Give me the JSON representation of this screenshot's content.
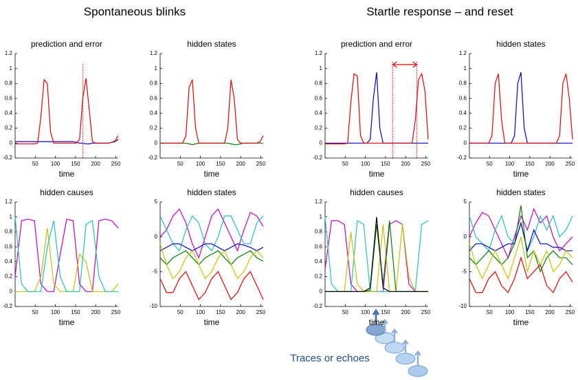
{
  "headings": [
    "Spontaneous blinks",
    "Startle response – and reset"
  ],
  "annotation": "Traces or echoes",
  "chart_data": [
    {
      "type": "line",
      "title": "prediction and error",
      "xlabel": "time",
      "xlim": [
        0,
        256
      ],
      "xticks": [
        50,
        100,
        150,
        200,
        250
      ],
      "ylim": [
        -0.2,
        1.2
      ],
      "yticks": [
        -0.2,
        0,
        0.2,
        0.4,
        0.6,
        0.8,
        1,
        1.2
      ],
      "vlines": [
        168
      ],
      "x": [
        0,
        8,
        16,
        24,
        32,
        40,
        48,
        56,
        64,
        72,
        80,
        88,
        96,
        104,
        112,
        120,
        128,
        136,
        144,
        152,
        160,
        168,
        176,
        184,
        192,
        200,
        208,
        216,
        224,
        232,
        240,
        248,
        256
      ],
      "series": [
        {
          "color": "#0000cc",
          "values": [
            0.02,
            0.02,
            0.02,
            0.02,
            0.02,
            0.02,
            0.02,
            0.02,
            0.02,
            0.02,
            0.02,
            0.02,
            0.02,
            0.02,
            0.02,
            0.02,
            0.02,
            0.02,
            0.02,
            0.01,
            0,
            0,
            -0.01,
            -0.01,
            0,
            0,
            0,
            0,
            0,
            0,
            0.01,
            0.02,
            0.05
          ]
        },
        {
          "color": "#e60000",
          "values": [
            -0.01,
            -0.01,
            -0.01,
            -0.01,
            -0.01,
            -0.01,
            -0.01,
            0,
            0.35,
            0.85,
            0.8,
            0.15,
            0,
            0,
            0,
            0,
            0,
            0,
            0,
            0,
            0.05,
            0.6,
            0.87,
            0.45,
            0.02,
            0,
            0,
            0,
            0,
            0,
            0.01,
            0.03,
            0.1
          ]
        }
      ]
    },
    {
      "type": "line",
      "title": "hidden states",
      "xlabel": "time",
      "xlim": [
        0,
        256
      ],
      "xticks": [
        50,
        100,
        150,
        200,
        250
      ],
      "ylim": [
        -0.2,
        1.2
      ],
      "yticks": [
        -0.2,
        0,
        0.2,
        0.4,
        0.6,
        0.8,
        1,
        1.2
      ],
      "x": [
        0,
        8,
        16,
        24,
        32,
        40,
        48,
        56,
        64,
        72,
        80,
        88,
        96,
        104,
        112,
        120,
        128,
        136,
        144,
        152,
        160,
        168,
        176,
        184,
        192,
        200,
        208,
        216,
        224,
        232,
        240,
        248,
        256
      ],
      "series": [
        {
          "color": "#008000",
          "values": [
            0,
            0,
            0,
            0,
            0,
            0,
            0,
            0,
            0,
            -0.01,
            -0.02,
            -0.01,
            0,
            0,
            0,
            0,
            0,
            0,
            0,
            0,
            0,
            0,
            -0.01,
            -0.02,
            -0.02,
            -0.01,
            0,
            0,
            0,
            0,
            0,
            0,
            0
          ]
        },
        {
          "color": "#e60000",
          "values": [
            0,
            0,
            0,
            0,
            0,
            0,
            0,
            0,
            0.1,
            0.75,
            0.85,
            0.2,
            0,
            0,
            0,
            0,
            0,
            0,
            0,
            0,
            0,
            0.2,
            0.85,
            0.6,
            0.05,
            0,
            0,
            0,
            0,
            0,
            0,
            0.02,
            0.1
          ]
        }
      ]
    },
    {
      "type": "line",
      "title": "prediction and error",
      "xlabel": "time",
      "xlim": [
        0,
        256
      ],
      "xticks": [
        50,
        100,
        150,
        200,
        250
      ],
      "ylim": [
        -0.2,
        1.2
      ],
      "yticks": [
        -0.2,
        0,
        0.2,
        0.4,
        0.6,
        0.8,
        1,
        1.2
      ],
      "span": [
        168,
        228
      ],
      "x": [
        0,
        8,
        16,
        24,
        32,
        40,
        48,
        56,
        64,
        72,
        80,
        88,
        96,
        104,
        112,
        120,
        128,
        136,
        144,
        152,
        160,
        168,
        176,
        184,
        192,
        200,
        208,
        216,
        224,
        232,
        240,
        248,
        256
      ],
      "series": [
        {
          "color": "#0000cc",
          "values": [
            0,
            0,
            0,
            0,
            0,
            0,
            0,
            0,
            0,
            0,
            0,
            0,
            0,
            0,
            0.05,
            0.6,
            0.95,
            0.2,
            0,
            0,
            0,
            0,
            0,
            0,
            0,
            0,
            0,
            0,
            0,
            0,
            0,
            0,
            0
          ]
        },
        {
          "color": "#e60000",
          "values": [
            -0.01,
            -0.01,
            -0.01,
            -0.01,
            -0.01,
            -0.01,
            -0.01,
            0,
            0.55,
            0.93,
            0.9,
            0.1,
            0,
            0,
            0,
            0,
            0,
            0,
            0,
            0,
            0,
            0,
            0,
            0,
            0,
            0,
            0,
            0,
            0.3,
            0.85,
            0.93,
            0.7,
            0.05
          ]
        }
      ]
    },
    {
      "type": "line",
      "title": "hidden states",
      "xlabel": "time",
      "xlim": [
        0,
        256
      ],
      "xticks": [
        50,
        100,
        150,
        200,
        250
      ],
      "ylim": [
        -0.2,
        1.2
      ],
      "yticks": [
        -0.2,
        0,
        0.2,
        0.4,
        0.6,
        0.8,
        1,
        1.2
      ],
      "x": [
        0,
        8,
        16,
        24,
        32,
        40,
        48,
        56,
        64,
        72,
        80,
        88,
        96,
        104,
        112,
        120,
        128,
        136,
        144,
        152,
        160,
        168,
        176,
        184,
        192,
        200,
        208,
        216,
        224,
        232,
        240,
        248,
        256
      ],
      "series": [
        {
          "color": "#0000cc",
          "values": [
            0,
            0,
            0,
            0,
            0,
            0,
            0,
            0,
            0,
            0,
            0,
            0,
            0,
            0,
            0.1,
            0.8,
            0.95,
            0.2,
            0,
            0,
            0,
            0,
            0,
            0,
            0,
            0,
            0,
            0,
            0,
            0,
            0,
            0,
            0
          ]
        },
        {
          "color": "#e60000",
          "values": [
            0,
            0,
            0,
            0,
            0,
            0,
            0,
            0.1,
            0.8,
            0.93,
            0.3,
            0,
            0,
            0,
            0,
            0,
            0,
            0,
            0,
            0,
            0,
            0,
            0,
            0,
            0,
            0,
            0,
            0,
            0.1,
            0.8,
            0.93,
            0.6,
            0.05
          ]
        }
      ]
    },
    {
      "type": "line",
      "title": "hidden causes",
      "xlabel": "time",
      "xlim": [
        0,
        256
      ],
      "xticks": [
        50,
        100,
        150,
        200,
        250
      ],
      "ylim": [
        -0.2,
        1.2
      ],
      "yticks": [
        -0.2,
        0,
        0.2,
        0.4,
        0.6,
        0.8,
        1,
        1.2
      ],
      "x": [
        0,
        16,
        32,
        48,
        64,
        80,
        96,
        112,
        128,
        144,
        160,
        176,
        192,
        208,
        224,
        240,
        256
      ],
      "series": [
        {
          "color": "#c000c0",
          "values": [
            0.2,
            0.95,
            0.97,
            0.95,
            0.1,
            0,
            0,
            0.5,
            0.97,
            0.95,
            0.1,
            0,
            0,
            0.95,
            0.97,
            0.95,
            0.85
          ]
        },
        {
          "color": "#c8c000",
          "values": [
            0,
            0,
            0,
            0,
            0.2,
            0.85,
            0.1,
            0,
            0,
            0,
            0.5,
            0.4,
            0,
            0,
            0,
            0,
            0.1
          ]
        },
        {
          "color": "#20c0c0",
          "values": [
            1,
            0.1,
            0,
            0,
            0,
            0.6,
            0.95,
            0.2,
            0,
            0,
            0,
            0.9,
            0.95,
            0.2,
            0,
            0,
            0
          ]
        }
      ]
    },
    {
      "type": "line",
      "title": "hidden states",
      "xlabel": "time",
      "xlim": [
        0,
        256
      ],
      "xticks": [
        50,
        100,
        150,
        200,
        250
      ],
      "ylim": [
        -10,
        5
      ],
      "yticks": [
        -10,
        -5,
        0,
        5
      ],
      "x": [
        0,
        16,
        32,
        48,
        64,
        80,
        96,
        112,
        128,
        144,
        160,
        176,
        192,
        208,
        224,
        240,
        256
      ],
      "series": [
        {
          "color": "#c000c0",
          "values": [
            0,
            1,
            3,
            4,
            2,
            -1,
            -3,
            0,
            3,
            4,
            2,
            0,
            -2,
            1,
            3.5,
            3,
            1.5
          ]
        },
        {
          "color": "#20c0c0",
          "values": [
            3,
            1,
            -1,
            -2,
            1,
            3,
            2,
            -1,
            -2,
            0,
            3,
            3,
            1,
            -1,
            -1,
            2,
            3
          ]
        },
        {
          "color": "#0000cc",
          "values": [
            -2,
            -1.5,
            -1,
            -1,
            -1.5,
            -2,
            -1.5,
            -1,
            -1,
            -1.5,
            -2,
            -1.5,
            -1,
            -1.2,
            -1.5,
            -2,
            -1.5
          ]
        },
        {
          "color": "#008000",
          "values": [
            -3,
            -4,
            -3,
            -2.5,
            -2,
            -3,
            -4,
            -3,
            -2.5,
            -2,
            -3,
            -4,
            -3,
            -2.5,
            -2,
            -3,
            -3.5
          ]
        },
        {
          "color": "#c8c000",
          "values": [
            -1,
            -4,
            -6,
            -5,
            -3,
            -2,
            -4,
            -6,
            -5,
            -3,
            -2,
            -4,
            -6,
            -5,
            -3,
            -2,
            -3
          ]
        },
        {
          "color": "#e60000",
          "values": [
            -6,
            -8,
            -8,
            -6,
            -5,
            -7,
            -9,
            -8,
            -6,
            -5,
            -7,
            -9,
            -8,
            -6,
            -5,
            -7,
            -9
          ]
        }
      ]
    },
    {
      "type": "line",
      "title": "hidden causes",
      "xlabel": "time",
      "xlim": [
        0,
        256
      ],
      "xticks": [
        50,
        100,
        150,
        200,
        250
      ],
      "ylim": [
        -0.2,
        1.2
      ],
      "yticks": [
        -0.2,
        0,
        0.2,
        0.4,
        0.6,
        0.8,
        1,
        1.2
      ],
      "x": [
        0,
        16,
        32,
        48,
        64,
        80,
        96,
        112,
        128,
        144,
        160,
        176,
        192,
        208,
        224,
        240,
        256
      ],
      "series": [
        {
          "color": "#c000c0",
          "values": [
            0.3,
            0.95,
            0.95,
            0.9,
            0.1,
            0,
            0,
            0,
            0,
            0,
            0.9,
            0.95,
            0.9,
            0.1,
            0,
            0,
            0
          ]
        },
        {
          "color": "#20c0c0",
          "values": [
            1,
            0.1,
            0,
            0,
            0,
            0.95,
            0.9,
            0,
            0,
            0,
            0,
            0,
            0,
            0,
            0,
            0.9,
            0.95
          ]
        },
        {
          "color": "#c8c000",
          "values": [
            0,
            0,
            0,
            0,
            0.8,
            0.1,
            0,
            0,
            0,
            0.9,
            0,
            0,
            0.9,
            0.2,
            0,
            0,
            0
          ]
        },
        {
          "color": "#008000",
          "values": [
            0,
            0,
            0,
            0,
            0,
            0,
            0,
            0.02,
            0.9,
            0.1,
            0.95,
            0,
            0,
            0,
            0,
            0,
            0
          ]
        },
        {
          "color": "#000000",
          "values": [
            0,
            0,
            0,
            0,
            0,
            0,
            0,
            0.05,
            1,
            0.05,
            0,
            0,
            0,
            0,
            0,
            0,
            0
          ]
        }
      ]
    },
    {
      "type": "line",
      "title": "hidden states",
      "xlabel": "time",
      "xlim": [
        0,
        256
      ],
      "xticks": [
        50,
        100,
        150,
        200,
        250
      ],
      "ylim": [
        -10,
        5
      ],
      "yticks": [
        -10,
        -5,
        0,
        5
      ],
      "x": [
        0,
        16,
        32,
        48,
        64,
        80,
        96,
        112,
        128,
        144,
        160,
        176,
        192,
        208,
        224,
        240,
        256
      ],
      "series": [
        {
          "color": "#c000c0",
          "values": [
            0,
            2,
            3.5,
            3,
            1,
            -1,
            -3,
            0,
            3,
            1,
            4,
            2,
            3,
            0,
            -2,
            -1,
            0
          ]
        },
        {
          "color": "#20c0c0",
          "values": [
            3,
            0,
            -1,
            -2,
            1,
            3,
            0,
            -1,
            2,
            -2,
            0,
            3,
            1,
            3,
            0,
            1,
            3
          ]
        },
        {
          "color": "#0000cc",
          "values": [
            -2,
            -1,
            -1,
            -1.5,
            -2,
            -1.5,
            -1,
            -1,
            2,
            -2,
            1,
            -1,
            -1,
            -1.5,
            -1.5,
            -2,
            -2
          ]
        },
        {
          "color": "#008000",
          "values": [
            -3,
            -4,
            -3,
            -2,
            -3,
            -4,
            -3,
            -1,
            4.5,
            -3,
            -2,
            -5,
            -3,
            -2,
            -3,
            -3,
            -4
          ]
        },
        {
          "color": "#c8c000",
          "values": [
            -1,
            -4,
            -6,
            -4,
            -2,
            -4,
            -6,
            -3,
            0,
            -5,
            -2,
            -4,
            -2,
            -5,
            -4,
            -2,
            -3
          ]
        },
        {
          "color": "#e60000",
          "values": [
            -6,
            -8,
            -8,
            -6,
            -5,
            -7,
            -8,
            -6,
            -3,
            -6,
            -5,
            -4,
            -7,
            -8,
            -6,
            -5,
            -6.5
          ]
        }
      ]
    }
  ]
}
